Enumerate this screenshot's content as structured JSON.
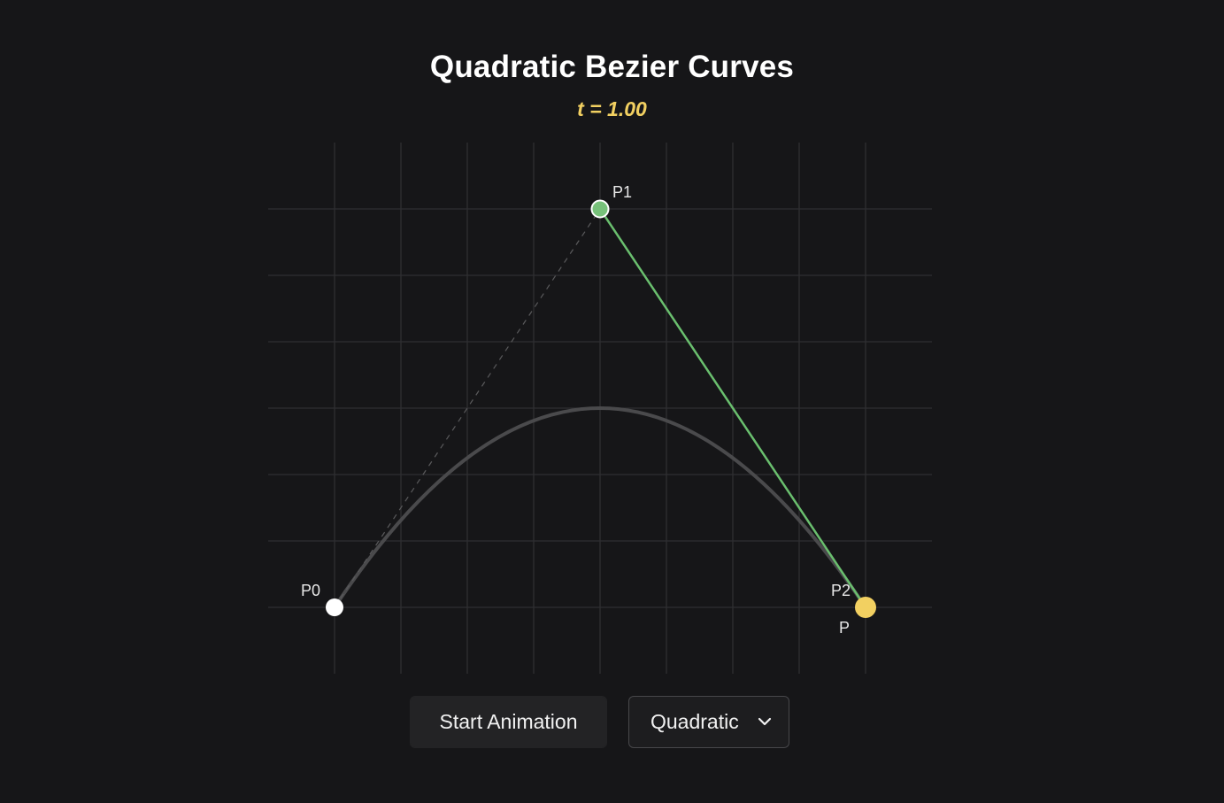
{
  "header": {
    "title": "Quadratic Bezier Curves",
    "t_display": "t = 1.00"
  },
  "animation": {
    "t": 1.0
  },
  "points": {
    "p0_label": "P0",
    "p1_label": "P1",
    "p2_label": "P2",
    "p_label": "P"
  },
  "colors": {
    "background": "#161618",
    "grid": "#2f2f32",
    "curve": "#4a4a4c",
    "tangent": "#6abf6e",
    "p1_fill": "#77c17a",
    "point_p": "#f2d061",
    "p0_fill": "#ffffff"
  },
  "controls": {
    "start_button_label": "Start Animation",
    "curve_type_selected": "Quadratic",
    "chevron_icon": "chevron-down-icon"
  }
}
